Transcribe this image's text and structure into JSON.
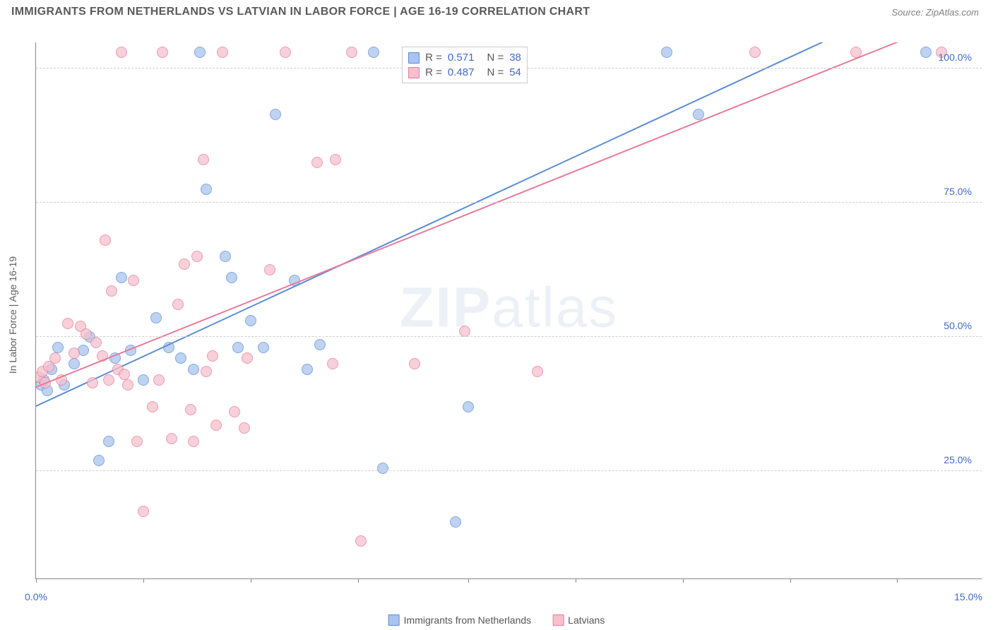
{
  "header": {
    "title": "IMMIGRANTS FROM NETHERLANDS VS LATVIAN IN LABOR FORCE | AGE 16-19 CORRELATION CHART",
    "source": "Source: ZipAtlas.com"
  },
  "chart": {
    "type": "scatter",
    "ylabel": "In Labor Force | Age 16-19",
    "xlim": [
      0,
      15
    ],
    "ylim": [
      5,
      105
    ],
    "xtick_positions": [
      0,
      1.7,
      3.4,
      5.1,
      6.85,
      8.55,
      10.25,
      11.95,
      13.65
    ],
    "xtick_labels": {
      "first": "0.0%",
      "last": "15.0%"
    },
    "ytick_positions": [
      25,
      50,
      75,
      100
    ],
    "ytick_labels": [
      "25.0%",
      "50.0%",
      "75.0%",
      "100.0%"
    ],
    "background_color": "#ffffff",
    "grid_color": "#d0d0d0",
    "axis_color": "#888888",
    "tick_label_color": "#4169c8",
    "axis_label_color": "#606060",
    "marker_radius": 8,
    "marker_opacity": 0.75,
    "line_width": 2.2,
    "watermark": "ZIPatlas"
  },
  "series": [
    {
      "id": "netherlands",
      "label": "Immigrants from Netherlands",
      "fill_color": "#a9c4ee",
      "stroke_color": "#5b8dd6",
      "R": "0.571",
      "N": "38",
      "trend": {
        "x1": 0,
        "y1": 37,
        "x2": 12.5,
        "y2": 105
      },
      "points": [
        [
          0.08,
          41
        ],
        [
          0.12,
          42
        ],
        [
          0.18,
          40
        ],
        [
          0.25,
          44
        ],
        [
          0.35,
          48
        ],
        [
          0.45,
          41
        ],
        [
          0.6,
          45
        ],
        [
          0.75,
          47.5
        ],
        [
          0.85,
          50
        ],
        [
          1.0,
          27
        ],
        [
          1.15,
          30.5
        ],
        [
          1.25,
          46
        ],
        [
          1.35,
          61
        ],
        [
          1.5,
          47.5
        ],
        [
          1.7,
          42
        ],
        [
          1.9,
          53.5
        ],
        [
          2.1,
          48
        ],
        [
          2.3,
          46
        ],
        [
          2.5,
          44
        ],
        [
          2.6,
          103
        ],
        [
          2.7,
          77.5
        ],
        [
          3.0,
          65
        ],
        [
          3.1,
          61
        ],
        [
          3.2,
          48
        ],
        [
          3.4,
          53
        ],
        [
          3.6,
          48
        ],
        [
          3.8,
          91.5
        ],
        [
          4.1,
          60.5
        ],
        [
          4.3,
          44
        ],
        [
          4.5,
          48.5
        ],
        [
          5.35,
          103
        ],
        [
          5.5,
          25.5
        ],
        [
          6.6,
          103
        ],
        [
          6.65,
          15.5
        ],
        [
          6.85,
          37
        ],
        [
          10.0,
          103
        ],
        [
          10.5,
          91.5
        ],
        [
          14.1,
          103
        ]
      ]
    },
    {
      "id": "latvians",
      "label": "Latvians",
      "fill_color": "#f5c1cd",
      "stroke_color": "#e87a99",
      "R": "0.487",
      "N": "54",
      "trend": {
        "x1": 0,
        "y1": 40.5,
        "x2": 13.7,
        "y2": 105
      },
      "points": [
        [
          0.05,
          42.5
        ],
        [
          0.1,
          43.5
        ],
        [
          0.15,
          41.5
        ],
        [
          0.2,
          44.5
        ],
        [
          0.3,
          46
        ],
        [
          0.4,
          42
        ],
        [
          0.5,
          52.5
        ],
        [
          0.6,
          47
        ],
        [
          0.7,
          52
        ],
        [
          0.8,
          50.5
        ],
        [
          0.9,
          41.5
        ],
        [
          0.95,
          49
        ],
        [
          1.05,
          46.5
        ],
        [
          1.1,
          68
        ],
        [
          1.15,
          42
        ],
        [
          1.2,
          58.5
        ],
        [
          1.3,
          44
        ],
        [
          1.35,
          103
        ],
        [
          1.4,
          43
        ],
        [
          1.45,
          41
        ],
        [
          1.55,
          60.5
        ],
        [
          1.6,
          30.5
        ],
        [
          1.7,
          17.5
        ],
        [
          1.85,
          37
        ],
        [
          1.95,
          42
        ],
        [
          2.0,
          103
        ],
        [
          2.15,
          31
        ],
        [
          2.25,
          56
        ],
        [
          2.35,
          63.5
        ],
        [
          2.45,
          36.5
        ],
        [
          2.5,
          30.5
        ],
        [
          2.55,
          65
        ],
        [
          2.65,
          83
        ],
        [
          2.7,
          43.5
        ],
        [
          2.8,
          46.5
        ],
        [
          2.85,
          33.5
        ],
        [
          2.95,
          103
        ],
        [
          3.15,
          36
        ],
        [
          3.3,
          33
        ],
        [
          3.35,
          46
        ],
        [
          3.7,
          62.5
        ],
        [
          3.95,
          103
        ],
        [
          4.45,
          82.5
        ],
        [
          4.7,
          45
        ],
        [
          4.75,
          83
        ],
        [
          5.0,
          103
        ],
        [
          5.15,
          12
        ],
        [
          6.0,
          45
        ],
        [
          6.8,
          51
        ],
        [
          7.95,
          43.5
        ],
        [
          7.45,
          103
        ],
        [
          11.4,
          103
        ],
        [
          13.0,
          103
        ],
        [
          14.35,
          103
        ]
      ]
    }
  ],
  "stats_box": {
    "R_label": "R  =",
    "N_label": "N  ="
  },
  "legend": {
    "position": "bottom-center"
  }
}
